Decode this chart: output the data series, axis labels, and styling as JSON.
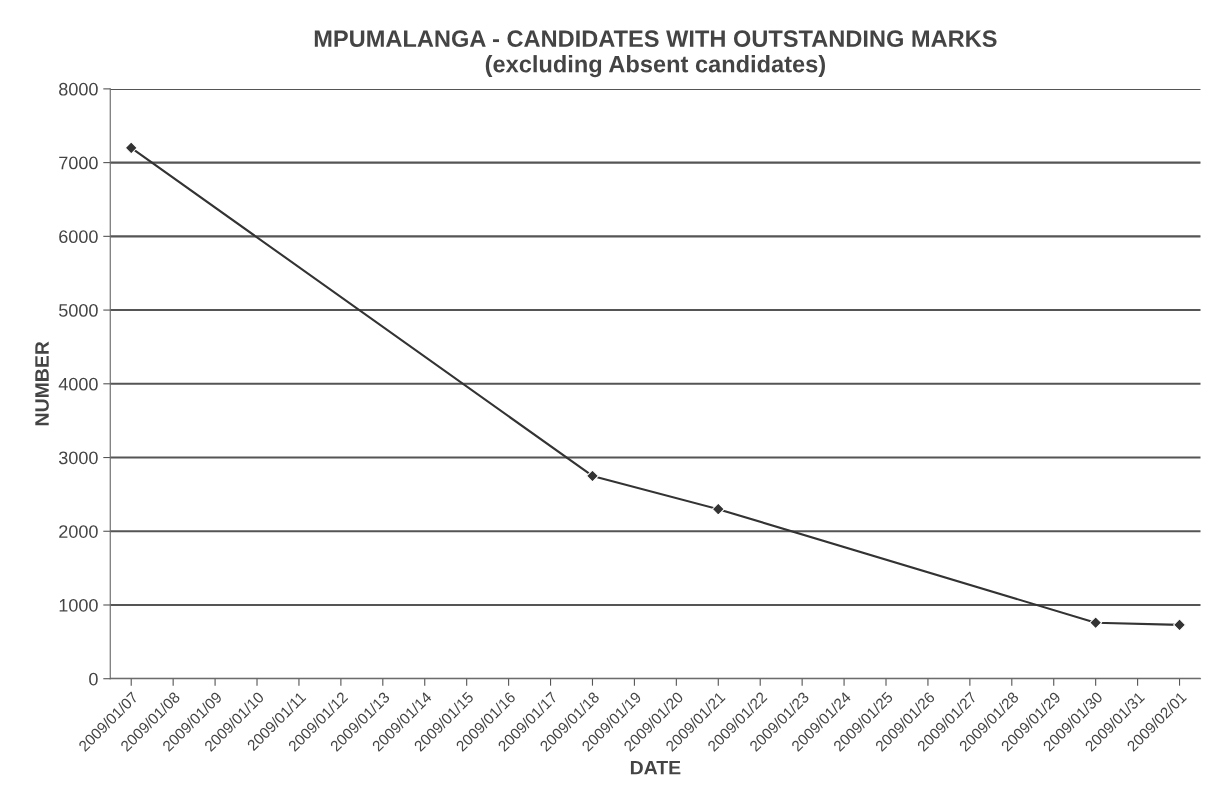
{
  "chart_data": {
    "type": "line",
    "title": "MPUMALANGA - CANDIDATES WITH OUTSTANDING MARKS\n(excluding Absent candidates)",
    "xlabel": "DATE",
    "ylabel": "NUMBER",
    "x": [
      "2009-01-07",
      "2009-01-18",
      "2009-01-21",
      "2009-01-30",
      "2009-02-01"
    ],
    "series": [
      {
        "color": "#333333",
        "values": [
          7200,
          2750,
          2300,
          760,
          730
        ]
      }
    ],
    "xlim": [
      "2009-01-06T12:00",
      "2009-02-01T12:00"
    ],
    "xticks": [
      {
        "value": "2009-01-07",
        "label": "2009/01/07"
      },
      {
        "value": "2009-01-08",
        "label": "2009/01/08"
      },
      {
        "value": "2009-01-09",
        "label": "2009/01/09"
      },
      {
        "value": "2009-01-10",
        "label": "2009/01/10"
      },
      {
        "value": "2009-01-11",
        "label": "2009/01/11"
      },
      {
        "value": "2009-01-12",
        "label": "2009/01/12"
      },
      {
        "value": "2009-01-13",
        "label": "2009/01/13"
      },
      {
        "value": "2009-01-14",
        "label": "2009/01/14"
      },
      {
        "value": "2009-01-15",
        "label": "2009/01/15"
      },
      {
        "value": "2009-01-16",
        "label": "2009/01/16"
      },
      {
        "value": "2009-01-17",
        "label": "2009/01/17"
      },
      {
        "value": "2009-01-18",
        "label": "2009/01/18"
      },
      {
        "value": "2009-01-19",
        "label": "2009/01/19"
      },
      {
        "value": "2009-01-20",
        "label": "2009/01/20"
      },
      {
        "value": "2009-01-21",
        "label": "2009/01/21"
      },
      {
        "value": "2009-01-22",
        "label": "2009/01/22"
      },
      {
        "value": "2009-01-23",
        "label": "2009/01/23"
      },
      {
        "value": "2009-01-24",
        "label": "2009/01/24"
      },
      {
        "value": "2009-01-25",
        "label": "2009/01/25"
      },
      {
        "value": "2009-01-26",
        "label": "2009/01/26"
      },
      {
        "value": "2009-01-27",
        "label": "2009/01/27"
      },
      {
        "value": "2009-01-28",
        "label": "2009/01/28"
      },
      {
        "value": "2009-01-29",
        "label": "2009/01/29"
      },
      {
        "value": "2009-01-30",
        "label": "2009/01/30"
      },
      {
        "value": "2009-01-31",
        "label": "2009/01/31"
      },
      {
        "value": "2009-02-01",
        "label": "2009/02/01"
      }
    ],
    "ylim": [
      0,
      8000
    ],
    "yticks": [
      0,
      1000,
      2000,
      3000,
      4000,
      5000,
      6000,
      7000,
      8000
    ],
    "grid": "y",
    "marker": "diamond",
    "line_style": "solid"
  }
}
